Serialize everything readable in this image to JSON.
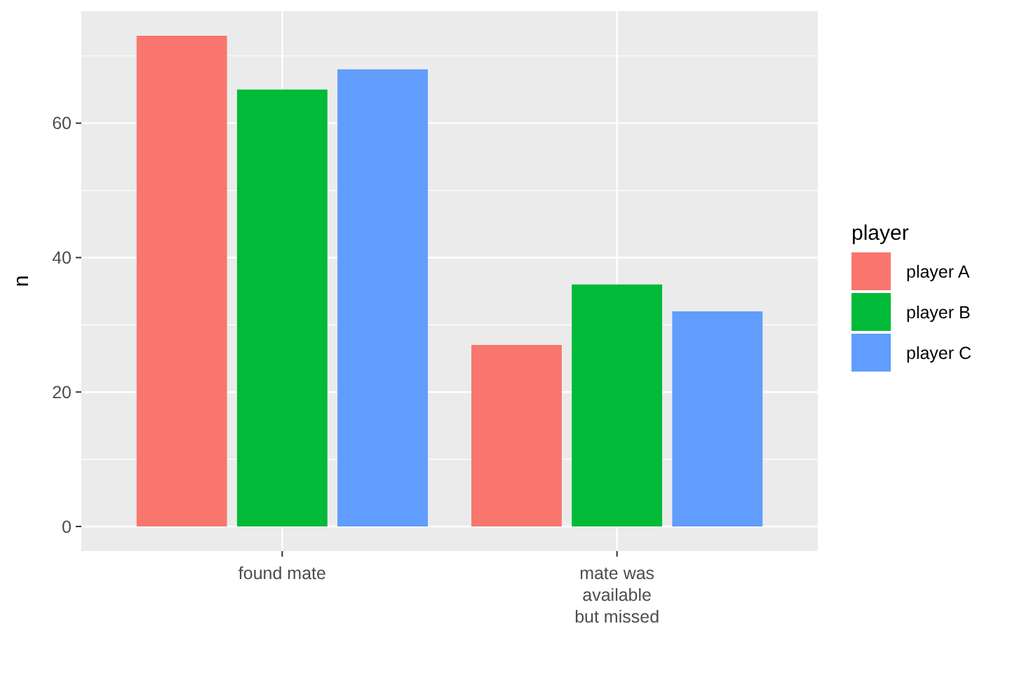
{
  "chart_data": {
    "type": "bar",
    "ylabel": "n",
    "legend_title": "player",
    "categories": [
      "found mate",
      "mate was\navailable\nbut missed"
    ],
    "series": [
      {
        "name": "player A",
        "color": "#f8766d",
        "values": [
          73,
          27
        ]
      },
      {
        "name": "player B",
        "color": "#00ba38",
        "values": [
          65,
          36
        ]
      },
      {
        "name": "player C",
        "color": "#619cff",
        "values": [
          68,
          32
        ]
      }
    ],
    "ylim": [
      -3.65,
      76.65
    ],
    "yticks": [
      0,
      {
        "value": 10,
        "label": null
      },
      20,
      {
        "value": 30,
        "label": null
      },
      40,
      {
        "value": 50,
        "label": null
      },
      60,
      {
        "value": 70,
        "label": null
      }
    ],
    "grid": true,
    "legend": "right"
  }
}
